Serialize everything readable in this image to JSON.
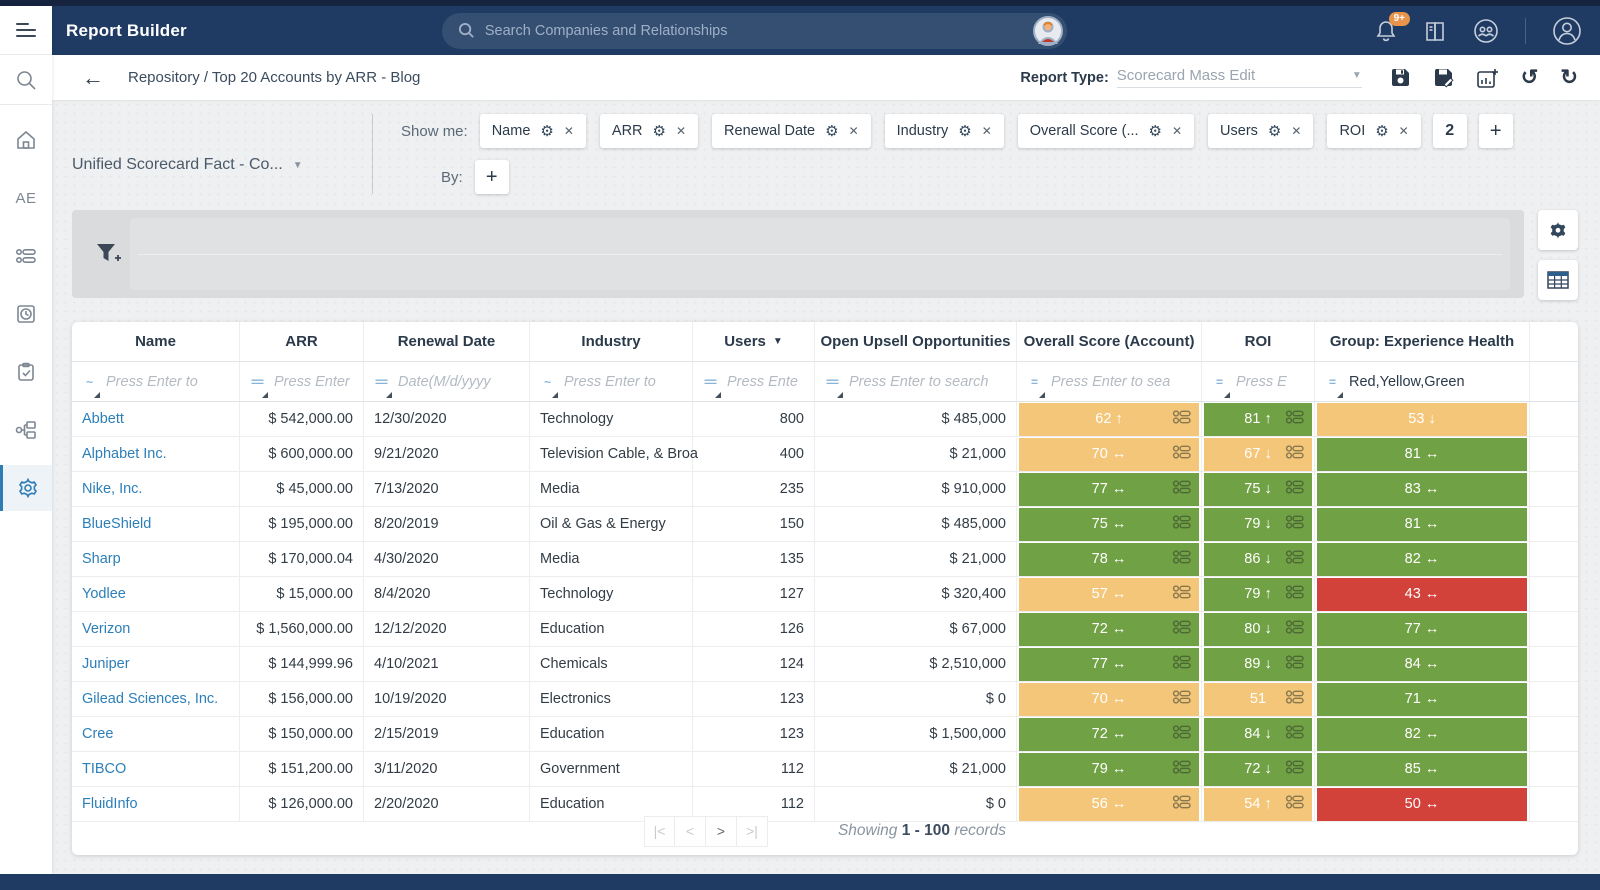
{
  "header": {
    "app_title": "Report Builder",
    "search_placeholder": "Search Companies and Relationships",
    "notification_count": "9+"
  },
  "breadcrumb": {
    "back": "←",
    "path": "Repository / Top 20 Accounts by ARR - Blog",
    "report_type_label": "Report Type:",
    "report_type_value": "Scorecard Mass Edit"
  },
  "sidebar": {
    "ae_label": "AE"
  },
  "controls": {
    "dataset": "Unified Scorecard Fact - Co...",
    "show_me_label": "Show me:",
    "by_label": "By:",
    "chips": [
      "Name",
      "ARR",
      "Renewal Date",
      "Industry",
      "Overall Score (...",
      "Users",
      "ROI"
    ],
    "more_count": "2",
    "add_label": "+"
  },
  "colors": {
    "green": "#71a145",
    "orange": "#f4c679",
    "red": "#d2413a",
    "navy": "#1f3b63",
    "link": "#2c7fb8",
    "badge": "#e8954b"
  },
  "table": {
    "columns": [
      {
        "label": "Name",
        "op": "~",
        "placeholder": "Press Enter to"
      },
      {
        "label": "ARR",
        "op": "==",
        "placeholder": "Press Enter"
      },
      {
        "label": "Renewal Date",
        "op": "==",
        "placeholder": "Date(M/d/yyyy"
      },
      {
        "label": "Industry",
        "op": "~",
        "placeholder": "Press Enter to"
      },
      {
        "label": "Users",
        "op": "==",
        "placeholder": "Press Ente",
        "sorted": "desc"
      },
      {
        "label": "Open Upsell Opportunities",
        "op": "==",
        "placeholder": "Press Enter to search"
      },
      {
        "label": "Overall Score (Account)",
        "op": "=",
        "placeholder": "Press Enter to sea"
      },
      {
        "label": "ROI",
        "op": "=",
        "placeholder": "Press E"
      },
      {
        "label": "Group: Experience Health",
        "op": "=",
        "value": "Red,Yellow,Green"
      }
    ],
    "rows": [
      {
        "name": "Abbett",
        "arr": "$ 542,000.00",
        "renewal": "12/30/2020",
        "industry": "Technology",
        "users": "800",
        "upsell": "$ 485,000",
        "overall": {
          "v": "62",
          "t": "up",
          "c": "orange"
        },
        "roi": {
          "v": "81",
          "t": "up",
          "c": "green"
        },
        "group": {
          "v": "53",
          "t": "down",
          "c": "orange"
        }
      },
      {
        "name": "Alphabet Inc.",
        "arr": "$ 600,000.00",
        "renewal": "9/21/2020",
        "industry": "Television Cable, & Broa",
        "users": "400",
        "upsell": "$ 21,000",
        "overall": {
          "v": "70",
          "t": "flat",
          "c": "orange"
        },
        "roi": {
          "v": "67",
          "t": "down",
          "c": "orange"
        },
        "group": {
          "v": "81",
          "t": "flat",
          "c": "green"
        }
      },
      {
        "name": "Nike, Inc.",
        "arr": "$ 45,000.00",
        "renewal": "7/13/2020",
        "industry": "Media",
        "users": "235",
        "upsell": "$ 910,000",
        "overall": {
          "v": "77",
          "t": "flat",
          "c": "green"
        },
        "roi": {
          "v": "75",
          "t": "down",
          "c": "green"
        },
        "group": {
          "v": "83",
          "t": "flat",
          "c": "green"
        }
      },
      {
        "name": "BlueShield",
        "arr": "$ 195,000.00",
        "renewal": "8/20/2019",
        "industry": "Oil & Gas & Energy",
        "users": "150",
        "upsell": "$ 485,000",
        "overall": {
          "v": "75",
          "t": "flat",
          "c": "green"
        },
        "roi": {
          "v": "79",
          "t": "down",
          "c": "green"
        },
        "group": {
          "v": "81",
          "t": "flat",
          "c": "green"
        }
      },
      {
        "name": "Sharp",
        "arr": "$ 170,000.04",
        "renewal": "4/30/2020",
        "industry": "Media",
        "users": "135",
        "upsell": "$ 21,000",
        "overall": {
          "v": "78",
          "t": "flat",
          "c": "green"
        },
        "roi": {
          "v": "86",
          "t": "down",
          "c": "green"
        },
        "group": {
          "v": "82",
          "t": "flat",
          "c": "green"
        }
      },
      {
        "name": "Yodlee",
        "arr": "$ 15,000.00",
        "renewal": "8/4/2020",
        "industry": "Technology",
        "users": "127",
        "upsell": "$ 320,400",
        "overall": {
          "v": "57",
          "t": "flat",
          "c": "orange"
        },
        "roi": {
          "v": "79",
          "t": "up",
          "c": "green"
        },
        "group": {
          "v": "43",
          "t": "flat",
          "c": "red"
        }
      },
      {
        "name": "Verizon",
        "arr": "$ 1,560,000.00",
        "renewal": "12/12/2020",
        "industry": "Education",
        "users": "126",
        "upsell": "$ 67,000",
        "overall": {
          "v": "72",
          "t": "flat",
          "c": "green"
        },
        "roi": {
          "v": "80",
          "t": "down",
          "c": "green"
        },
        "group": {
          "v": "77",
          "t": "flat",
          "c": "green"
        }
      },
      {
        "name": "Juniper",
        "arr": "$ 144,999.96",
        "renewal": "4/10/2021",
        "industry": "Chemicals",
        "users": "124",
        "upsell": "$ 2,510,000",
        "overall": {
          "v": "77",
          "t": "flat",
          "c": "green"
        },
        "roi": {
          "v": "89",
          "t": "down",
          "c": "green"
        },
        "group": {
          "v": "84",
          "t": "flat",
          "c": "green"
        }
      },
      {
        "name": "Gilead Sciences, Inc.",
        "arr": "$ 156,000.00",
        "renewal": "10/19/2020",
        "industry": "Electronics",
        "users": "123",
        "upsell": "$ 0",
        "overall": {
          "v": "70",
          "t": "flat",
          "c": "orange"
        },
        "roi": {
          "v": "51",
          "t": null,
          "c": "orange"
        },
        "group": {
          "v": "71",
          "t": "flat",
          "c": "green"
        }
      },
      {
        "name": "Cree",
        "arr": "$ 150,000.00",
        "renewal": "2/15/2019",
        "industry": "Education",
        "users": "123",
        "upsell": "$ 1,500,000",
        "overall": {
          "v": "72",
          "t": "flat",
          "c": "green"
        },
        "roi": {
          "v": "84",
          "t": "down",
          "c": "green"
        },
        "group": {
          "v": "82",
          "t": "flat",
          "c": "green"
        }
      },
      {
        "name": "TIBCO",
        "arr": "$ 151,200.00",
        "renewal": "3/11/2020",
        "industry": "Government",
        "users": "112",
        "upsell": "$ 21,000",
        "overall": {
          "v": "79",
          "t": "flat",
          "c": "green"
        },
        "roi": {
          "v": "72",
          "t": "down",
          "c": "green"
        },
        "group": {
          "v": "85",
          "t": "flat",
          "c": "green"
        }
      },
      {
        "name": "FluidInfo",
        "arr": "$ 126,000.00",
        "renewal": "2/20/2020",
        "industry": "Education",
        "users": "112",
        "upsell": "$ 0",
        "overall": {
          "v": "56",
          "t": "flat",
          "c": "orange"
        },
        "roi": {
          "v": "54",
          "t": "up",
          "c": "orange"
        },
        "group": {
          "v": "50",
          "t": "flat",
          "c": "red"
        }
      }
    ]
  },
  "pagination": {
    "showing": "Showing",
    "range": "1 - 100",
    "records": "records"
  }
}
